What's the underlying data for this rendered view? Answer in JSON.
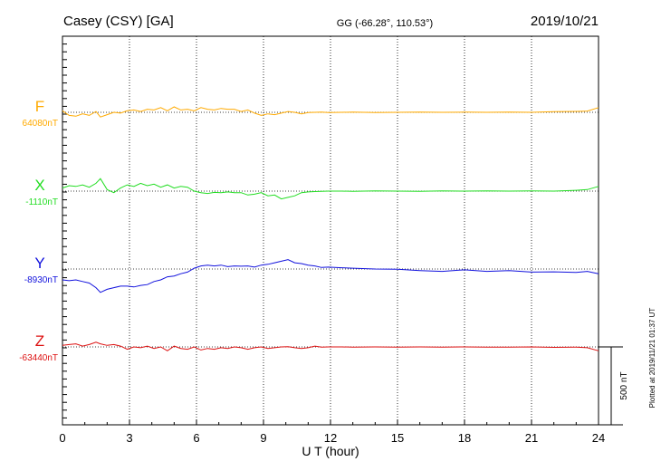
{
  "header": {
    "station": "Casey (CSY)  [GA]",
    "coords": "GG (-66.28°, 110.53°)",
    "date": "2019/10/21"
  },
  "side_note": "Plotted at 2019/11/21 01:37 UT",
  "scale_label": "500 nT",
  "chart_data": {
    "type": "line",
    "xlabel": "U T (hour)",
    "xlim": [
      0,
      24
    ],
    "xticks": [
      0,
      3,
      6,
      9,
      12,
      15,
      18,
      21,
      24
    ],
    "scale_bar_nT": 500,
    "grid": true,
    "series": [
      {
        "name": "F",
        "baseline_label": "64080nT",
        "baseline_nT": 64080,
        "color": "#ffaa00",
        "x": [
          0,
          0.3,
          0.6,
          0.9,
          1.2,
          1.5,
          1.7,
          2.0,
          2.3,
          2.6,
          2.9,
          3.2,
          3.5,
          3.8,
          4.1,
          4.4,
          4.7,
          5.0,
          5.3,
          5.6,
          5.9,
          6.2,
          6.5,
          6.8,
          7.1,
          7.4,
          7.7,
          8.0,
          8.3,
          8.6,
          8.9,
          9.2,
          9.5,
          9.8,
          10.1,
          10.4,
          10.7,
          11.0,
          11.3,
          11.6,
          11.9,
          12.5,
          13,
          14,
          15,
          16,
          17,
          18,
          19,
          20,
          21,
          22,
          23,
          23.5,
          24
        ],
        "y": [
          64090,
          64060,
          64055,
          64070,
          64060,
          64085,
          64050,
          64065,
          64080,
          64075,
          64090,
          64095,
          64085,
          64100,
          64095,
          64110,
          64090,
          64115,
          64095,
          64100,
          64090,
          64110,
          64100,
          64095,
          64105,
          64100,
          64100,
          64085,
          64095,
          64075,
          64060,
          64070,
          64065,
          64075,
          64085,
          64080,
          64070,
          64078,
          64080,
          64082,
          64078,
          64080,
          64081,
          64079,
          64080,
          64082,
          64080,
          64081,
          64080,
          64082,
          64080,
          64084,
          64086,
          64088,
          64110
        ]
      },
      {
        "name": "X",
        "baseline_label": "-1110nT",
        "baseline_nT": -1110,
        "color": "#22dd22",
        "x": [
          0,
          0.3,
          0.6,
          0.9,
          1.2,
          1.5,
          1.7,
          2.0,
          2.3,
          2.6,
          2.9,
          3.2,
          3.5,
          3.8,
          4.1,
          4.4,
          4.7,
          5.0,
          5.3,
          5.6,
          5.9,
          6.2,
          6.5,
          6.8,
          7.1,
          7.4,
          7.7,
          8.0,
          8.3,
          8.6,
          8.9,
          9.2,
          9.5,
          9.8,
          10.1,
          10.4,
          10.7,
          11.0,
          11.3,
          11.6,
          11.9,
          12.5,
          13,
          14,
          15,
          16,
          17,
          18,
          19,
          20,
          21,
          22,
          23,
          23.5,
          24
        ],
        "y": [
          -1090,
          -1075,
          -1080,
          -1070,
          -1085,
          -1060,
          -1030,
          -1100,
          -1120,
          -1090,
          -1070,
          -1080,
          -1060,
          -1075,
          -1065,
          -1085,
          -1070,
          -1090,
          -1080,
          -1085,
          -1110,
          -1120,
          -1125,
          -1118,
          -1120,
          -1115,
          -1120,
          -1120,
          -1135,
          -1130,
          -1120,
          -1140,
          -1135,
          -1160,
          -1150,
          -1140,
          -1120,
          -1115,
          -1113,
          -1112,
          -1110,
          -1110,
          -1111,
          -1108,
          -1110,
          -1112,
          -1109,
          -1110,
          -1108,
          -1110,
          -1109,
          -1110,
          -1105,
          -1100,
          -1080
        ]
      },
      {
        "name": "Y",
        "baseline_label": "-8930nT",
        "baseline_nT": -8930,
        "color": "#1111dd",
        "x": [
          0,
          0.3,
          0.6,
          0.9,
          1.2,
          1.5,
          1.7,
          2.0,
          2.3,
          2.6,
          2.9,
          3.2,
          3.5,
          3.8,
          4.1,
          4.4,
          4.7,
          5.0,
          5.3,
          5.6,
          5.9,
          6.2,
          6.5,
          6.8,
          7.1,
          7.4,
          7.7,
          8.0,
          8.3,
          8.6,
          8.9,
          9.2,
          9.5,
          9.8,
          10.1,
          10.4,
          10.7,
          11.0,
          11.3,
          11.6,
          11.9,
          12.5,
          13,
          14,
          15,
          16,
          17,
          18,
          19,
          20,
          21,
          22,
          23,
          23.5,
          24
        ],
        "y": [
          -9000,
          -9005,
          -9000,
          -9010,
          -9020,
          -9050,
          -9080,
          -9060,
          -9050,
          -9040,
          -9040,
          -9045,
          -9035,
          -9030,
          -9010,
          -9000,
          -8980,
          -8975,
          -8960,
          -8950,
          -8925,
          -8910,
          -8905,
          -8910,
          -8905,
          -8915,
          -8910,
          -8912,
          -8910,
          -8918,
          -8905,
          -8900,
          -8890,
          -8880,
          -8870,
          -8890,
          -8895,
          -8905,
          -8910,
          -8920,
          -8918,
          -8922,
          -8925,
          -8930,
          -8932,
          -8940,
          -8945,
          -8935,
          -8945,
          -8940,
          -8950,
          -8948,
          -8952,
          -8945,
          -8960
        ]
      },
      {
        "name": "Z",
        "baseline_label": "-63440nT",
        "baseline_nT": -63440,
        "color": "#dd1111",
        "x": [
          0,
          0.3,
          0.6,
          0.9,
          1.2,
          1.5,
          1.7,
          2.0,
          2.3,
          2.6,
          2.9,
          3.2,
          3.5,
          3.8,
          4.1,
          4.4,
          4.7,
          5.0,
          5.3,
          5.6,
          5.9,
          6.2,
          6.5,
          6.8,
          7.1,
          7.4,
          7.7,
          8.0,
          8.3,
          8.6,
          8.9,
          9.2,
          9.5,
          9.8,
          10.1,
          10.4,
          10.7,
          11.0,
          11.3,
          11.6,
          11.9,
          12.5,
          13,
          14,
          15,
          16,
          17,
          18,
          19,
          20,
          21,
          22,
          23,
          23.5,
          24
        ],
        "y": [
          -63430,
          -63425,
          -63420,
          -63435,
          -63425,
          -63410,
          -63420,
          -63430,
          -63425,
          -63435,
          -63455,
          -63440,
          -63445,
          -63435,
          -63450,
          -63440,
          -63465,
          -63435,
          -63450,
          -63455,
          -63440,
          -63460,
          -63450,
          -63455,
          -63445,
          -63450,
          -63440,
          -63445,
          -63455,
          -63445,
          -63440,
          -63450,
          -63445,
          -63440,
          -63438,
          -63445,
          -63450,
          -63445,
          -63435,
          -63442,
          -63440,
          -63440,
          -63441,
          -63440,
          -63442,
          -63440,
          -63441,
          -63440,
          -63442,
          -63441,
          -63440,
          -63443,
          -63442,
          -63445,
          -63465
        ]
      }
    ]
  }
}
